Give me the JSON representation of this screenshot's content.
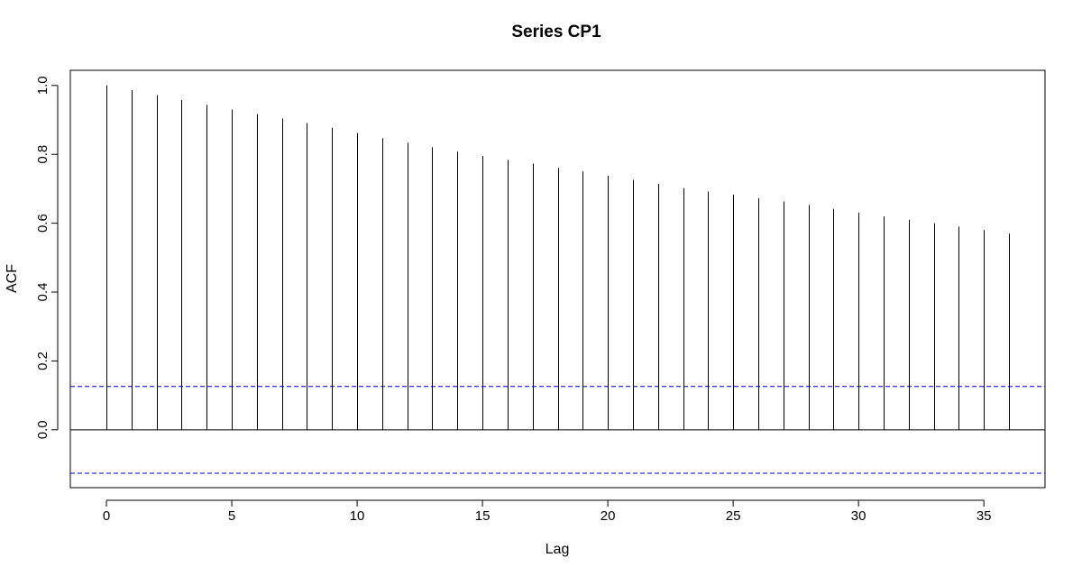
{
  "chart_data": {
    "type": "bar",
    "title": "Series  CP1",
    "xlabel": "Lag",
    "ylabel": "ACF",
    "x": [
      0,
      1,
      2,
      3,
      4,
      5,
      6,
      7,
      8,
      9,
      10,
      11,
      12,
      13,
      14,
      15,
      16,
      17,
      18,
      19,
      20,
      21,
      22,
      23,
      24,
      25,
      26,
      27,
      28,
      29,
      30,
      31,
      32,
      33,
      34,
      35,
      36
    ],
    "values": [
      1.0,
      0.986,
      0.972,
      0.958,
      0.944,
      0.93,
      0.917,
      0.904,
      0.891,
      0.877,
      0.862,
      0.847,
      0.834,
      0.821,
      0.808,
      0.795,
      0.784,
      0.773,
      0.761,
      0.75,
      0.738,
      0.726,
      0.714,
      0.702,
      0.692,
      0.683,
      0.673,
      0.663,
      0.653,
      0.642,
      0.631,
      0.62,
      0.61,
      0.6,
      0.59,
      0.58,
      0.57
    ],
    "confidence_bound": 0.126,
    "xlim": [
      -1.44,
      37.44
    ],
    "ylim": [
      -0.168,
      1.044
    ],
    "xticks": [
      0,
      5,
      10,
      15,
      20,
      25,
      30,
      35
    ],
    "yticks": [
      0.0,
      0.2,
      0.4,
      0.6,
      0.8,
      1.0
    ],
    "xtick_labels": [
      "0",
      "5",
      "10",
      "15",
      "20",
      "25",
      "30",
      "35"
    ],
    "ytick_labels": [
      "0.0",
      "0.2",
      "0.4",
      "0.6",
      "0.8",
      "1.0"
    ],
    "colors": {
      "bars": "#000000",
      "bounds": "#0000cc",
      "axes": "#000000"
    },
    "grid": false
  }
}
